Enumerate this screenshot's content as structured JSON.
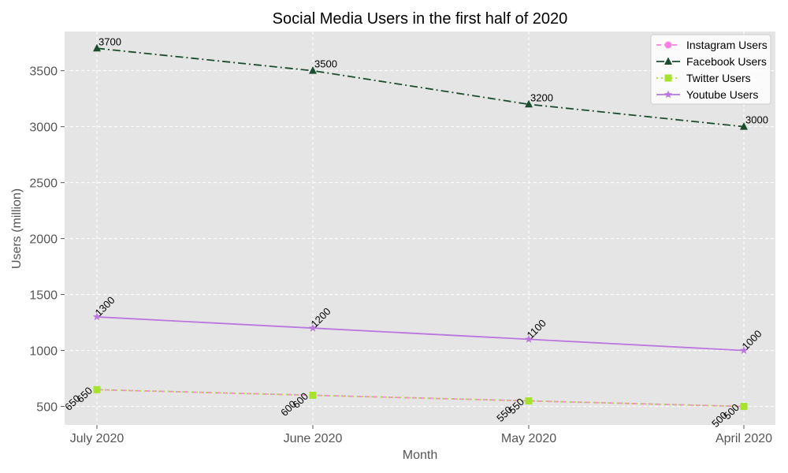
{
  "chart_data": {
    "type": "line",
    "title": "Social Media Users in the first half of 2020",
    "xlabel": "Month",
    "ylabel": "Users (million)",
    "categories": [
      "July 2020",
      "June 2020",
      "May 2020",
      "April 2020"
    ],
    "ylim": [
      335,
      3850
    ],
    "yticks": [
      500,
      1000,
      1500,
      2000,
      2500,
      3000,
      3500
    ],
    "grid": true,
    "legend_position": "top-right",
    "series": [
      {
        "name": "Instagram Users",
        "values": [
          650,
          600,
          550,
          500
        ],
        "color": "#ff7fe3",
        "dash": "dashed",
        "marker": "circle",
        "label_dx": -20,
        "label_dy": 12,
        "label_rot": -45,
        "label_anchor": "end"
      },
      {
        "name": "Facebook Users",
        "values": [
          3700,
          3500,
          3200,
          3000
        ],
        "color": "#1a4d2e",
        "dash": "dashdot",
        "marker": "triangle",
        "label_dx": 2,
        "label_dy": -4,
        "label_rot": 0,
        "label_anchor": "start"
      },
      {
        "name": "Twitter Users",
        "values": [
          650,
          600,
          550,
          500
        ],
        "color": "#a6e22e",
        "dash": "dotted",
        "marker": "square",
        "label_dx": -5,
        "label_dy": 2,
        "label_rot": -45,
        "label_anchor": "end"
      },
      {
        "name": "Youtube Users",
        "values": [
          1300,
          1200,
          1100,
          1000
        ],
        "color": "#bb77dd",
        "dash": "solid",
        "marker": "star",
        "label_dx": 3,
        "label_dy": 0,
        "label_rot": -45,
        "label_anchor": "start"
      }
    ]
  }
}
